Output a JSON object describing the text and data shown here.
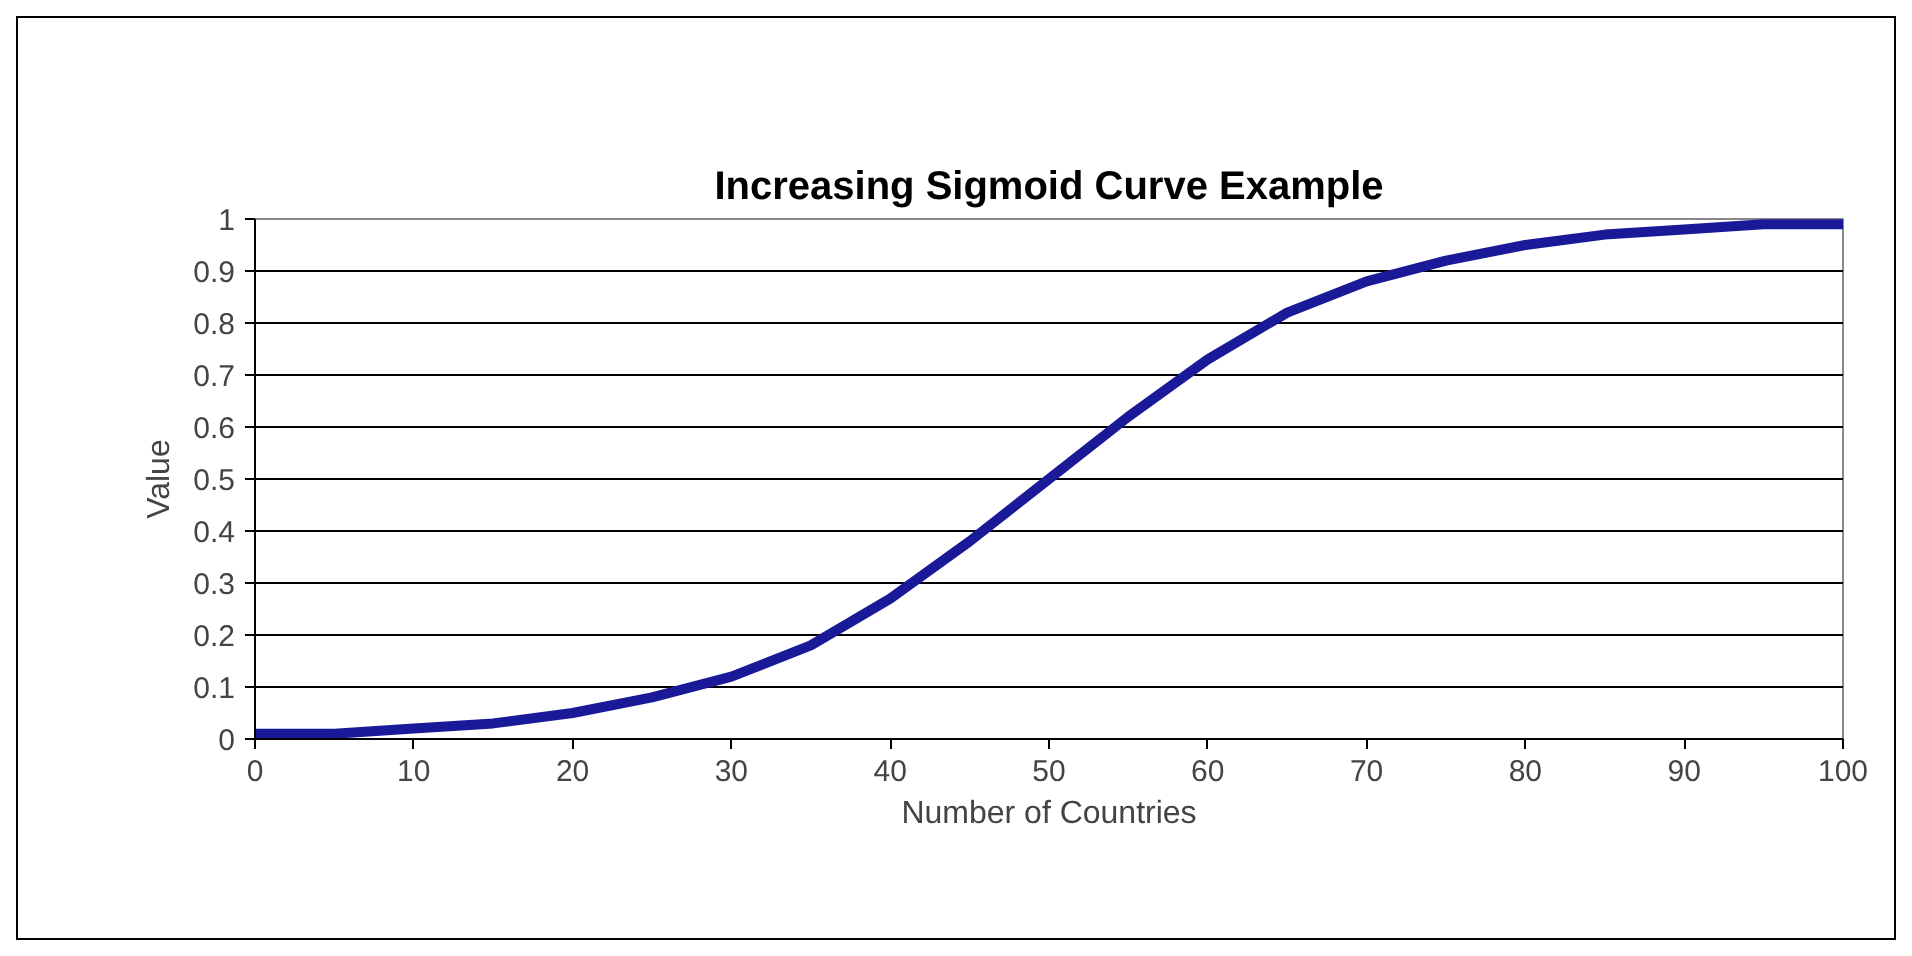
{
  "chart_data": {
    "type": "line",
    "title": "Increasing Sigmoid Curve Example",
    "xlabel": "Number of Countries",
    "ylabel": "Value",
    "x": [
      0,
      5,
      10,
      15,
      20,
      25,
      30,
      35,
      40,
      45,
      50,
      55,
      60,
      65,
      70,
      75,
      80,
      85,
      90,
      95,
      100
    ],
    "series": [
      {
        "color": "#1a1a99",
        "values": [
          0.01,
          0.01,
          0.02,
          0.03,
          0.05,
          0.08,
          0.12,
          0.18,
          0.27,
          0.38,
          0.5,
          0.62,
          0.73,
          0.82,
          0.88,
          0.92,
          0.95,
          0.97,
          0.98,
          0.99,
          0.99
        ]
      }
    ],
    "xlim": [
      0,
      100
    ],
    "xticks": [
      0,
      10,
      20,
      30,
      40,
      50,
      60,
      70,
      80,
      90,
      100
    ],
    "ylim": [
      0,
      1
    ],
    "yticks": [
      0,
      0.1,
      0.2,
      0.3,
      0.4,
      0.5,
      0.6,
      0.7,
      0.8,
      0.9,
      1
    ],
    "grid": "y",
    "marker": "none",
    "line_style": "solid"
  }
}
